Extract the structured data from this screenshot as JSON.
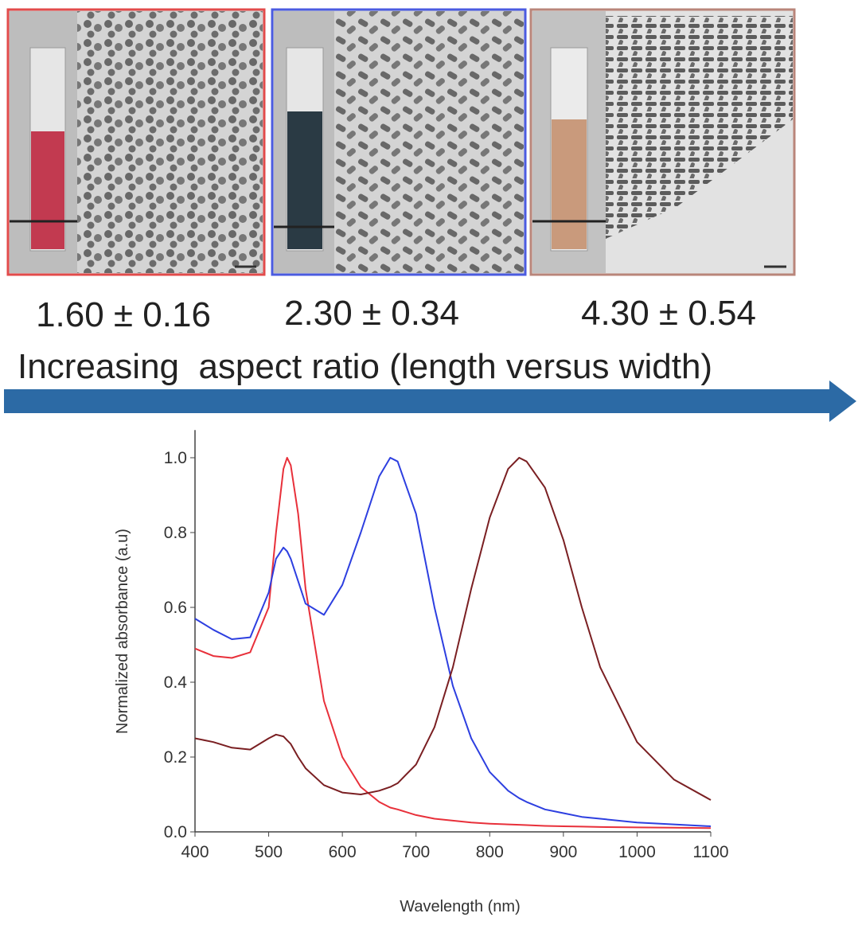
{
  "panels": [
    {
      "label": "1.60 ± 0.16"
    },
    {
      "label": "2.30 ± 0.34"
    },
    {
      "label": "4.30 ± 0.54"
    }
  ],
  "caption": "Increasing  aspect ratio (length versus width)",
  "chart_data": {
    "type": "line",
    "x_label": "Wavelength (nm)",
    "y_label": "Normalized absorbance (a.u)",
    "x": [
      400,
      425,
      450,
      475,
      500,
      510,
      520,
      525,
      530,
      540,
      550,
      575,
      600,
      625,
      650,
      665,
      675,
      700,
      725,
      750,
      775,
      800,
      825,
      840,
      850,
      875,
      900,
      925,
      950,
      1000,
      1050,
      1100
    ],
    "series": [
      {
        "color": "#e8303a",
        "values": [
          0.49,
          0.47,
          0.465,
          0.48,
          0.6,
          0.8,
          0.97,
          1.0,
          0.98,
          0.85,
          0.65,
          0.35,
          0.2,
          0.12,
          0.08,
          0.065,
          0.06,
          0.045,
          0.035,
          0.03,
          0.025,
          0.022,
          0.02,
          0.019,
          0.018,
          0.016,
          0.015,
          0.014,
          0.013,
          0.012,
          0.011,
          0.01
        ]
      },
      {
        "color": "#2d3fe0",
        "values": [
          0.57,
          0.54,
          0.515,
          0.52,
          0.64,
          0.73,
          0.76,
          0.75,
          0.73,
          0.67,
          0.61,
          0.58,
          0.66,
          0.8,
          0.95,
          1.0,
          0.99,
          0.85,
          0.6,
          0.39,
          0.25,
          0.16,
          0.11,
          0.09,
          0.08,
          0.06,
          0.05,
          0.04,
          0.035,
          0.025,
          0.02,
          0.015
        ]
      },
      {
        "color": "#7a1f22",
        "values": [
          0.25,
          0.24,
          0.225,
          0.22,
          0.25,
          0.26,
          0.255,
          0.245,
          0.235,
          0.2,
          0.17,
          0.125,
          0.105,
          0.1,
          0.11,
          0.12,
          0.13,
          0.18,
          0.28,
          0.44,
          0.65,
          0.84,
          0.97,
          1.0,
          0.99,
          0.92,
          0.78,
          0.6,
          0.44,
          0.24,
          0.14,
          0.085
        ]
      }
    ],
    "xlim": [
      400,
      1100
    ],
    "ylim": [
      0,
      1.074
    ],
    "xticks": [
      400,
      500,
      600,
      700,
      800,
      900,
      1000,
      1100
    ],
    "yticks": [
      {
        "value": 0,
        "label": "0.0"
      },
      0.2,
      0.4,
      0.6,
      0.8,
      {
        "value": 1,
        "label": "1.0"
      }
    ]
  }
}
